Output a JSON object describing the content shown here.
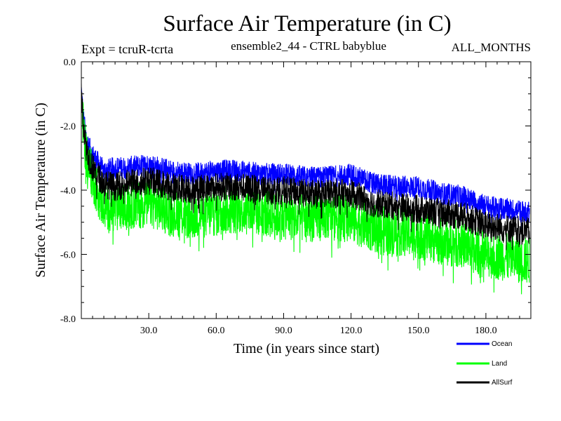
{
  "header": {
    "title": "Surface Air Temperature (in C)",
    "expt": "Expt = tcruR-tcrta",
    "subtitle": "ensemble2_44 - CTRL babyblue",
    "months": "ALL_MONTHS"
  },
  "chart_data": {
    "type": "line",
    "title": "Surface Air Temperature (in C)",
    "xlabel": "Time (in years since start)",
    "ylabel": "Surface Air Temperature (in C)",
    "xlim": [
      0,
      200
    ],
    "ylim": [
      -8.0,
      0.0
    ],
    "x_ticks": [
      30,
      60,
      90,
      120,
      150,
      180
    ],
    "x_tick_labels": [
      "30.0",
      "60.0",
      "90.0",
      "120.0",
      "150.0",
      "180.0"
    ],
    "y_ticks": [
      0,
      -2,
      -4,
      -6,
      -8
    ],
    "y_tick_labels": [
      "0.0",
      "-2.0",
      "-4.0",
      "-6.0",
      "-8.0"
    ],
    "grid": false,
    "legend_position": "bottom-right, below plot",
    "series": [
      {
        "name": "Ocean",
        "color": "#0000ff",
        "x": [
          0,
          1,
          2,
          3,
          5,
          8,
          10,
          15,
          20,
          30,
          40,
          50,
          60,
          70,
          80,
          90,
          100,
          110,
          120,
          130,
          140,
          150,
          160,
          170,
          180,
          190,
          199
        ],
        "values": [
          -0.9,
          -1.8,
          -2.3,
          -2.6,
          -2.9,
          -3.2,
          -3.4,
          -3.3,
          -3.3,
          -3.2,
          -3.4,
          -3.5,
          -3.4,
          -3.4,
          -3.5,
          -3.5,
          -3.6,
          -3.6,
          -3.5,
          -3.8,
          -3.9,
          -3.9,
          -4.1,
          -4.2,
          -4.5,
          -4.6,
          -4.7
        ],
        "noise_amplitude": 0.35
      },
      {
        "name": "Land",
        "color": "#00ff00",
        "x": [
          0,
          1,
          2,
          3,
          5,
          8,
          10,
          15,
          20,
          30,
          40,
          50,
          60,
          70,
          80,
          90,
          100,
          110,
          120,
          130,
          140,
          150,
          160,
          170,
          180,
          190,
          199
        ],
        "values": [
          -1.1,
          -2.2,
          -2.8,
          -3.1,
          -3.6,
          -4.2,
          -4.5,
          -4.6,
          -4.5,
          -4.4,
          -4.7,
          -4.8,
          -4.7,
          -4.6,
          -4.7,
          -4.8,
          -4.9,
          -4.8,
          -4.9,
          -5.2,
          -5.3,
          -5.4,
          -5.6,
          -5.7,
          -6.0,
          -6.1,
          -6.2
        ],
        "noise_amplitude": 0.75
      },
      {
        "name": "AllSurf",
        "color": "#000000",
        "x": [
          0,
          1,
          2,
          3,
          5,
          8,
          10,
          15,
          20,
          30,
          40,
          50,
          60,
          70,
          80,
          90,
          100,
          110,
          120,
          130,
          140,
          150,
          160,
          170,
          180,
          190,
          199
        ],
        "values": [
          -1.0,
          -2.0,
          -2.6,
          -2.9,
          -3.3,
          -3.6,
          -3.8,
          -3.9,
          -3.8,
          -3.7,
          -3.9,
          -4.0,
          -3.9,
          -3.9,
          -4.0,
          -4.0,
          -4.1,
          -4.1,
          -4.1,
          -4.4,
          -4.5,
          -4.6,
          -4.7,
          -4.8,
          -5.1,
          -5.2,
          -5.3
        ],
        "noise_amplitude": 0.45
      }
    ]
  }
}
